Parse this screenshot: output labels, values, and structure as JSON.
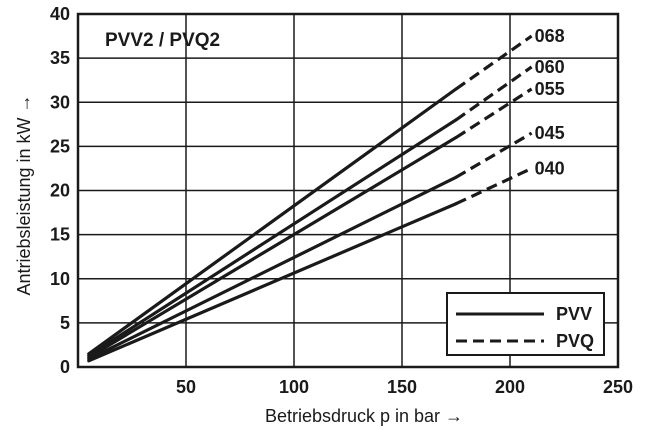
{
  "chart_data": {
    "type": "line",
    "title": "PVV2 / PVQ2",
    "xlabel": "Betriebsdruck p in bar →",
    "ylabel": "Antriebsleistung in kW →",
    "xlim": [
      0,
      250
    ],
    "ylim": [
      0,
      40
    ],
    "xticks": [
      50,
      100,
      150,
      200,
      250
    ],
    "yticks": [
      0,
      5,
      10,
      15,
      20,
      25,
      30,
      35,
      40
    ],
    "grid": true,
    "legend_position": "bottom-right",
    "legend": [
      {
        "label": "PVV",
        "style": "solid"
      },
      {
        "label": "PVQ",
        "style": "dashed"
      }
    ],
    "series": [
      {
        "name": "068",
        "solid": [
          [
            5,
            1.5
          ],
          [
            175,
            31.5
          ]
        ],
        "dashed": [
          [
            175,
            31.5
          ],
          [
            210,
            37.5
          ]
        ]
      },
      {
        "name": "060",
        "solid": [
          [
            5,
            1.3
          ],
          [
            175,
            28.0
          ]
        ],
        "dashed": [
          [
            175,
            28.0
          ],
          [
            210,
            34.0
          ]
        ]
      },
      {
        "name": "055",
        "solid": [
          [
            5,
            1.1
          ],
          [
            175,
            26.0
          ]
        ],
        "dashed": [
          [
            175,
            26.0
          ],
          [
            210,
            31.5
          ]
        ]
      },
      {
        "name": "045",
        "solid": [
          [
            5,
            0.9
          ],
          [
            175,
            21.5
          ]
        ],
        "dashed": [
          [
            175,
            21.5
          ],
          [
            210,
            26.5
          ]
        ]
      },
      {
        "name": "040",
        "solid": [
          [
            5,
            0.7
          ],
          [
            175,
            18.5
          ]
        ],
        "dashed": [
          [
            175,
            18.5
          ],
          [
            210,
            22.5
          ]
        ]
      }
    ],
    "line_color": "#1a1a1a"
  }
}
